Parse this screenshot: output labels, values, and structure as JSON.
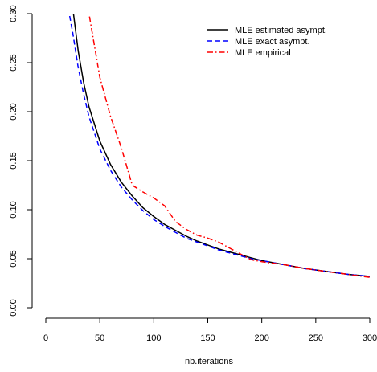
{
  "chart_data": {
    "type": "line",
    "title": "",
    "xlabel": "nb.iterations",
    "ylabel": "",
    "xlim": [
      0,
      300
    ],
    "ylim": [
      0,
      0.3
    ],
    "x_ticks": [
      0,
      50,
      100,
      150,
      200,
      250,
      300
    ],
    "y_ticks": [
      0.0,
      0.05,
      0.1,
      0.15,
      0.2,
      0.25,
      0.3
    ],
    "x_tick_labels": [
      "0",
      "50",
      "100",
      "150",
      "200",
      "250",
      "300"
    ],
    "y_tick_labels": [
      "0.00",
      "0.05",
      "0.10",
      "0.15",
      "0.20",
      "0.25",
      "0.30"
    ],
    "grid": false,
    "legend_position": "top-right",
    "series": [
      {
        "name": "MLE estimated asympt.",
        "color": "#000000",
        "dash": "solid",
        "x": [
          20,
          25,
          30,
          35,
          40,
          50,
          60,
          70,
          80,
          90,
          100,
          110,
          120,
          130,
          140,
          150,
          160,
          170,
          180,
          190,
          200,
          220,
          240,
          260,
          280,
          300
        ],
        "y": [
          0.36,
          0.305,
          0.262,
          0.23,
          0.205,
          0.17,
          0.146,
          0.128,
          0.114,
          0.102,
          0.093,
          0.085,
          0.079,
          0.073,
          0.068,
          0.064,
          0.06,
          0.057,
          0.054,
          0.051,
          0.048,
          0.044,
          0.04,
          0.037,
          0.034,
          0.032
        ]
      },
      {
        "name": "MLE exact asympt.",
        "color": "#0000ff",
        "dash": "dashed",
        "x": [
          18,
          20,
          25,
          30,
          35,
          40,
          50,
          60,
          70,
          80,
          90,
          100,
          110,
          120,
          130,
          140,
          150,
          160,
          170,
          180,
          190,
          200,
          220,
          240,
          260,
          280,
          300
        ],
        "y": [
          0.33,
          0.31,
          0.28,
          0.245,
          0.218,
          0.195,
          0.162,
          0.14,
          0.123,
          0.11,
          0.099,
          0.09,
          0.083,
          0.077,
          0.071,
          0.067,
          0.063,
          0.059,
          0.056,
          0.053,
          0.05,
          0.048,
          0.044,
          0.04,
          0.037,
          0.034,
          0.032
        ]
      },
      {
        "name": "MLE empirical",
        "color": "#ff0000",
        "dash": "dashdot",
        "x": [
          35,
          40,
          50,
          60,
          70,
          80,
          90,
          100,
          110,
          120,
          130,
          140,
          150,
          160,
          170,
          180,
          190,
          200,
          220,
          240,
          260,
          280,
          300
        ],
        "y": [
          0.32,
          0.3,
          0.235,
          0.195,
          0.163,
          0.125,
          0.118,
          0.112,
          0.104,
          0.088,
          0.08,
          0.074,
          0.071,
          0.067,
          0.061,
          0.055,
          0.049,
          0.047,
          0.044,
          0.04,
          0.037,
          0.034,
          0.031
        ]
      }
    ]
  }
}
